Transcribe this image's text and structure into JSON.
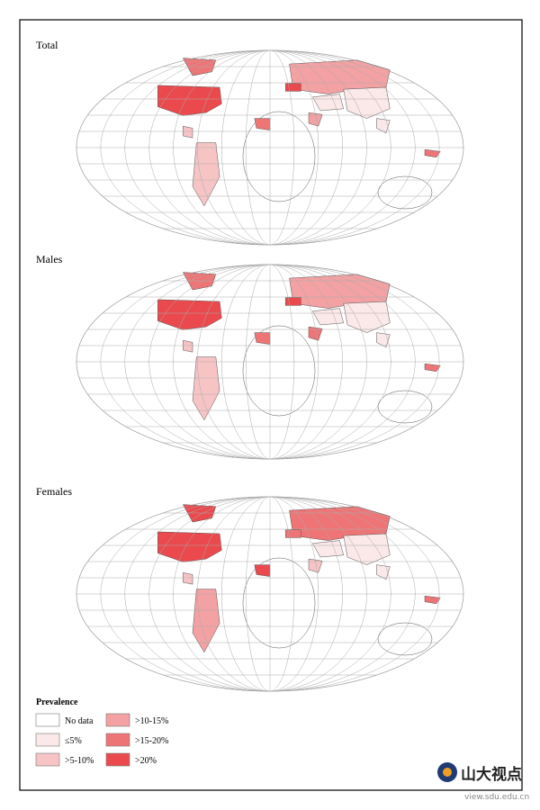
{
  "maps": [
    {
      "title": "Total"
    },
    {
      "title": "Males"
    },
    {
      "title": "Females"
    }
  ],
  "legend": {
    "title": "Prevalence",
    "items": [
      {
        "label": "No data",
        "color": "#ffffff"
      },
      {
        "label": "≤5%",
        "color": "#fbe8e8"
      },
      {
        "label": ">5-10%",
        "color": "#f7c4c5"
      },
      {
        "label": ">10-15%",
        "color": "#f3a1a3"
      },
      {
        "label": ">15-20%",
        "color": "#ef7476"
      },
      {
        "label": ">20%",
        "color": "#ea4a4d"
      }
    ]
  },
  "watermark": {
    "logo_text": "山大视点",
    "url": "view.sdu.edu.cn"
  }
}
